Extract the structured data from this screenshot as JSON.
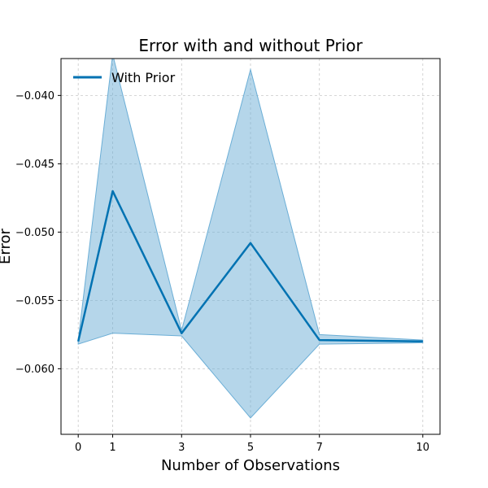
{
  "chart_data": {
    "type": "line",
    "title": "Error with and without Prior",
    "xlabel": "Number of Observations",
    "ylabel": "Error",
    "x": [
      0,
      1,
      3,
      5,
      7,
      10
    ],
    "xticks": [
      "0",
      "1",
      "3",
      "5",
      "7",
      "10"
    ],
    "yticks": [
      -0.04,
      -0.045,
      -0.05,
      -0.055,
      -0.06
    ],
    "ytick_labels": [
      "−0.040",
      "−0.045",
      "−0.050",
      "−0.055",
      "−0.060"
    ],
    "xlim": [
      -0.5,
      10.5
    ],
    "ylim": [
      -0.0648,
      -0.0373
    ],
    "grid": true,
    "legend_position": "top-left",
    "series": [
      {
        "name": "With Prior",
        "color": "#0072b2",
        "band_color": "#6baed6",
        "values": [
          -0.058,
          -0.047,
          -0.0574,
          -0.0508,
          -0.0579,
          -0.058
        ],
        "upper": [
          -0.0579,
          -0.037,
          -0.0572,
          -0.0381,
          -0.0575,
          -0.0579
        ],
        "lower": [
          -0.0582,
          -0.0574,
          -0.0576,
          -0.0636,
          -0.0582,
          -0.0581
        ]
      }
    ]
  }
}
